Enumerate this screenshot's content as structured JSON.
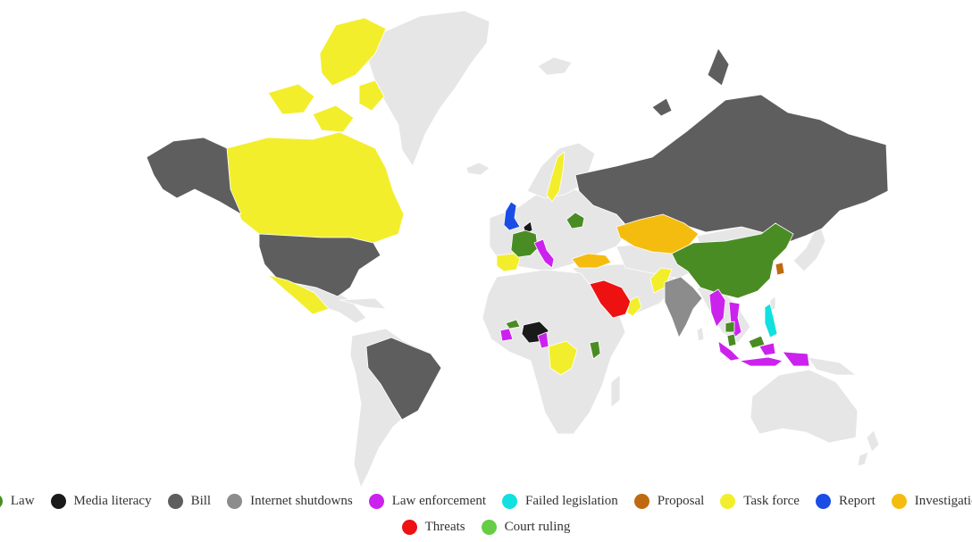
{
  "legend": {
    "row1": [
      {
        "key": "law",
        "label": "Law",
        "color": "#4a8c24"
      },
      {
        "key": "media_literacy",
        "label": "Media literacy",
        "color": "#1a1a1a"
      },
      {
        "key": "bill",
        "label": "Bill",
        "color": "#5e5e5e"
      },
      {
        "key": "internet_shutdowns",
        "label": "Internet shutdowns",
        "color": "#8c8c8c"
      },
      {
        "key": "law_enforcement",
        "label": "Law enforcement",
        "color": "#cc22ee"
      },
      {
        "key": "failed_legislation",
        "label": "Failed legislation",
        "color": "#11e0e0"
      },
      {
        "key": "proposal",
        "label": "Proposal",
        "color": "#c06a10"
      },
      {
        "key": "task_force",
        "label": "Task force",
        "color": "#f2ee2c"
      },
      {
        "key": "report",
        "label": "Report",
        "color": "#1a4de6"
      },
      {
        "key": "investigation",
        "label": "Investigation",
        "color": "#f5bc10"
      }
    ],
    "row2": [
      {
        "key": "threats",
        "label": "Threats",
        "color": "#ee1111"
      },
      {
        "key": "court_ruling",
        "label": "Court ruling",
        "color": "#66cc44"
      }
    ]
  },
  "map": {
    "base_color": "#e6e6e6",
    "countries": [
      {
        "name": "Canada",
        "category": "task_force"
      },
      {
        "name": "Canadian Arctic Archipelago",
        "category": "task_force"
      },
      {
        "name": "Mexico",
        "category": "task_force"
      },
      {
        "name": "United States",
        "category": "bill"
      },
      {
        "name": "Alaska",
        "category": "bill"
      },
      {
        "name": "Brazil",
        "category": "bill"
      },
      {
        "name": "Russia",
        "category": "bill"
      },
      {
        "name": "Novaya Zemlya",
        "category": "bill"
      },
      {
        "name": "Sweden",
        "category": "task_force"
      },
      {
        "name": "United Kingdom",
        "category": "report"
      },
      {
        "name": "Belgium",
        "category": "media_literacy"
      },
      {
        "name": "France",
        "category": "law"
      },
      {
        "name": "Spain",
        "category": "task_force"
      },
      {
        "name": "Italy",
        "category": "law_enforcement"
      },
      {
        "name": "Belarus",
        "category": "law"
      },
      {
        "name": "Kazakhstan",
        "category": "investigation"
      },
      {
        "name": "Turkey",
        "category": "investigation"
      },
      {
        "name": "Saudi Arabia",
        "category": "threats"
      },
      {
        "name": "Oman",
        "category": "task_force"
      },
      {
        "name": "Pakistan",
        "category": "task_force"
      },
      {
        "name": "India",
        "category": "internet_shutdowns"
      },
      {
        "name": "China",
        "category": "law"
      },
      {
        "name": "South Korea",
        "category": "proposal"
      },
      {
        "name": "Philippines",
        "category": "failed_legislation"
      },
      {
        "name": "Myanmar",
        "category": "law_enforcement"
      },
      {
        "name": "Vietnam",
        "category": "law_enforcement"
      },
      {
        "name": "Cambodia",
        "category": "law"
      },
      {
        "name": "Malaysia",
        "category": "law"
      },
      {
        "name": "Indonesia",
        "category": "law_enforcement"
      },
      {
        "name": "Nigeria",
        "category": "media_literacy"
      },
      {
        "name": "Cote d'Ivoire",
        "category": "law_enforcement"
      },
      {
        "name": "Burkina Faso",
        "category": "law"
      },
      {
        "name": "Cameroon",
        "category": "law_enforcement"
      },
      {
        "name": "DR Congo",
        "category": "task_force"
      },
      {
        "name": "Kenya",
        "category": "law"
      }
    ]
  }
}
